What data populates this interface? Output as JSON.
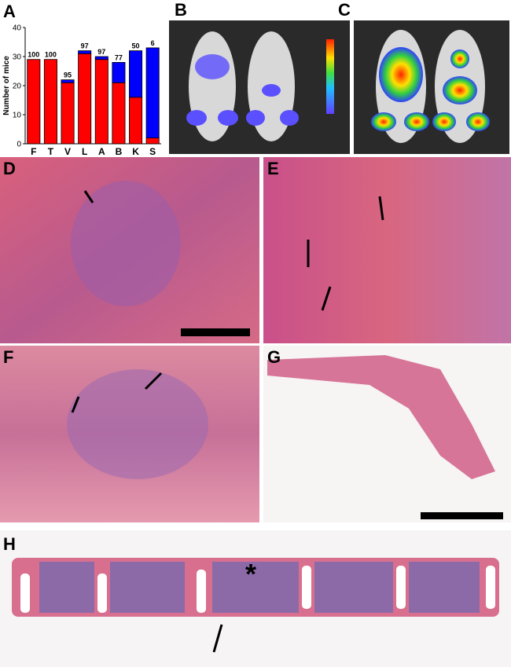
{
  "panels": [
    "A",
    "B",
    "C",
    "D",
    "E",
    "F",
    "G",
    "H"
  ],
  "chart_data": {
    "type": "bar",
    "stacked": true,
    "y_label": "Number of mice",
    "categories": [
      "F",
      "T",
      "V",
      "L",
      "A",
      "B",
      "K",
      "S"
    ],
    "series": [
      {
        "color": "#ff0000",
        "values": [
          29,
          29,
          21,
          31,
          29,
          21,
          16,
          2
        ]
      },
      {
        "color": "#0000ff",
        "values": [
          0,
          0,
          1,
          1,
          1,
          7,
          16,
          31
        ]
      }
    ],
    "bar_labels": [
      100,
      100,
      95,
      97,
      97,
      77,
      50,
      6
    ],
    "ylim": [
      0,
      40
    ],
    "yticks": [
      0,
      10,
      20,
      30,
      40
    ]
  }
}
